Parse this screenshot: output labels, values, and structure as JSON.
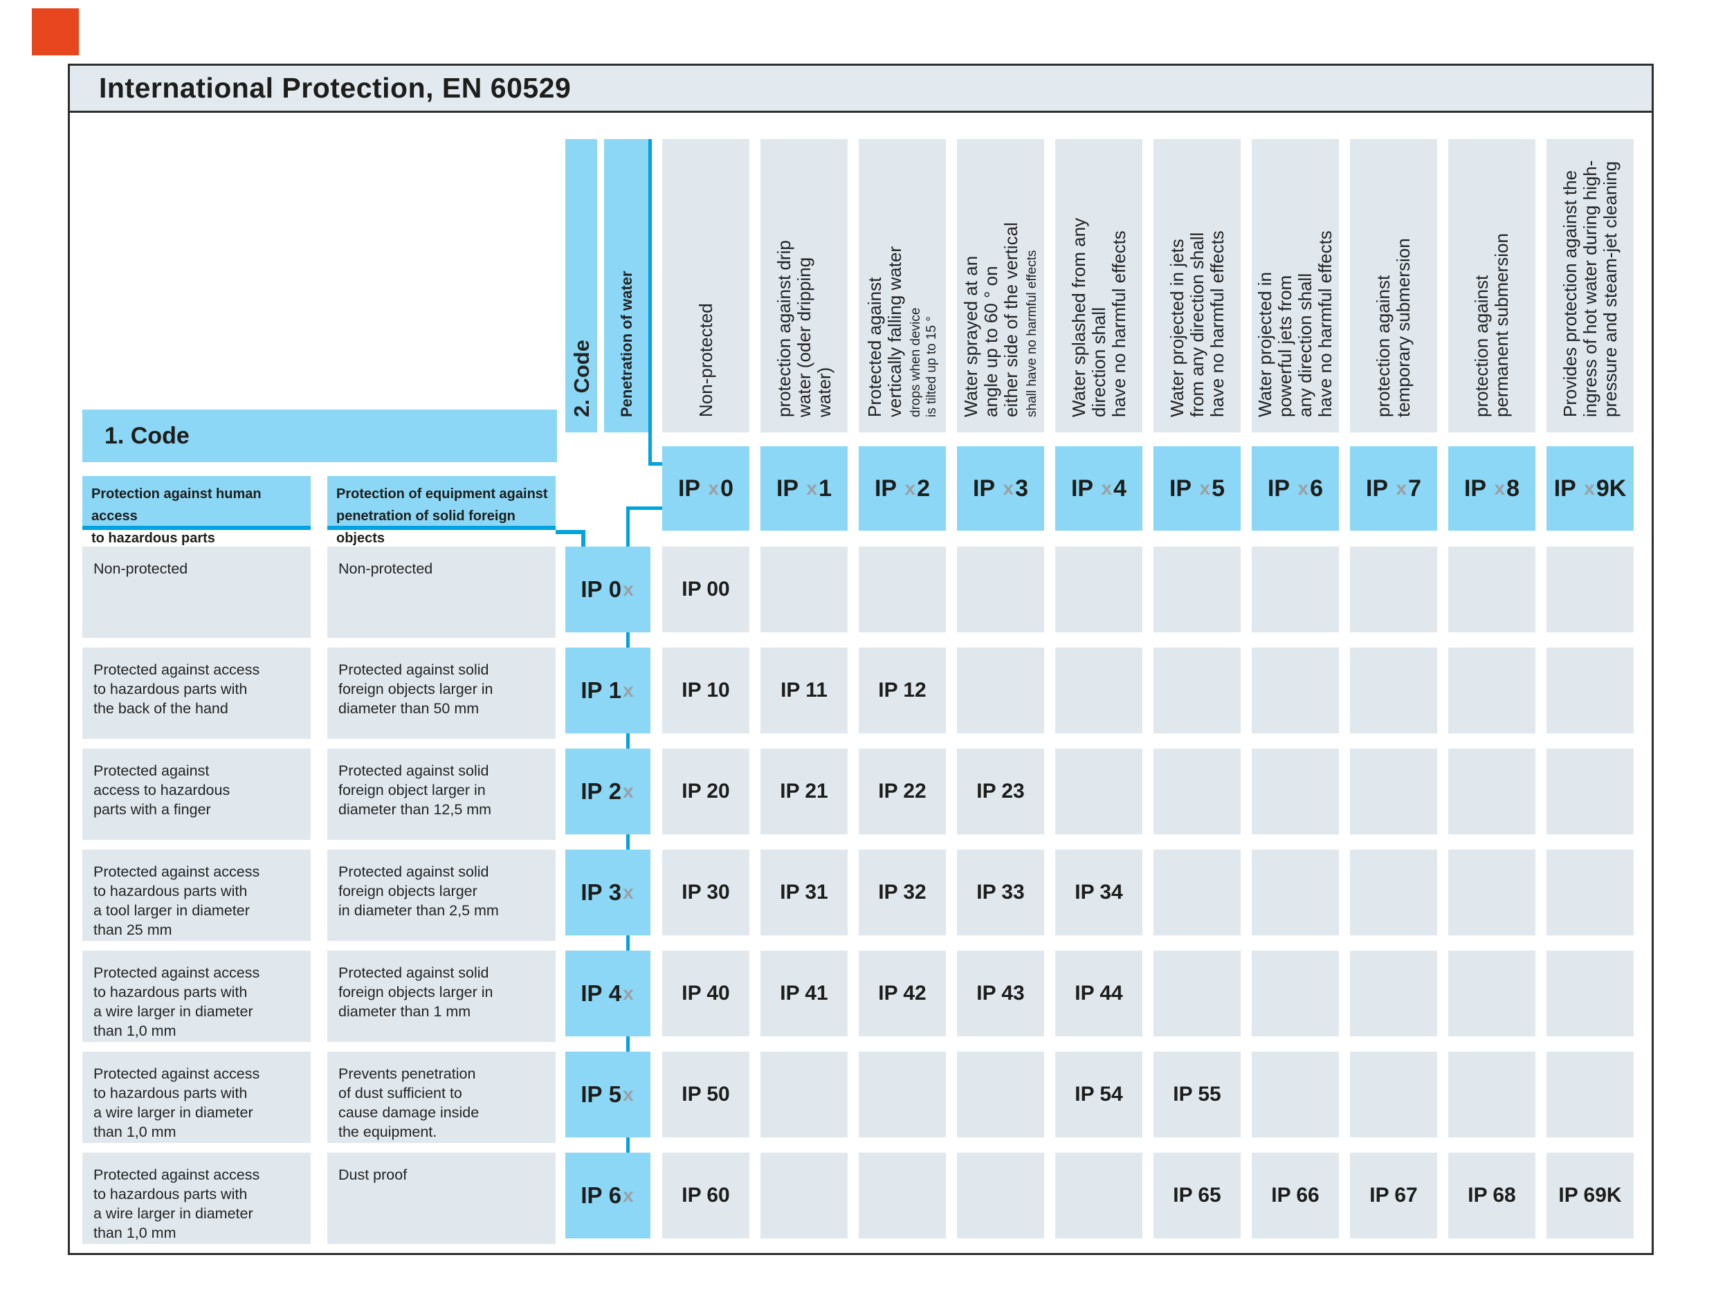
{
  "logo": {
    "name": "red-square-logo",
    "color": "#e8461f"
  },
  "title": "International Protection, EN 60529",
  "header": {
    "code2_label": "2. Code",
    "penetration_label": "Penetration of water",
    "code1_label": "1. Code",
    "subheader_access": "Protection against human access\nto hazardous parts",
    "subheader_objects": "Protection of equipment against\npenetration of solid foreign objects",
    "ip_prefix": "IP",
    "x_placeholder": "x"
  },
  "water_columns": [
    {
      "code_digit": "0",
      "label": "Non-protected",
      "note": ""
    },
    {
      "code_digit": "1",
      "label": "protection against drip\nwater (oder dripping\nwater)",
      "note": ""
    },
    {
      "code_digit": "2",
      "label": "Protected against\nvertically falling water",
      "note": "drops when device\nis tilted up to 15 °"
    },
    {
      "code_digit": "3",
      "label": "Water  sprayed at an\nangle up to 60 ° on\neither side of the vertical",
      "note": "shall have no harmful effects"
    },
    {
      "code_digit": "4",
      "label": "Water splashed from any\ndirection shall\nhave no harmful effects",
      "note": ""
    },
    {
      "code_digit": "5",
      "label": "Water projected in jets\nfrom any direction shall\nhave no harmful effects",
      "note": ""
    },
    {
      "code_digit": "6",
      "label": "Water projected in\npowerful jets from\nany direction shall\nhave no harmful effects",
      "note": ""
    },
    {
      "code_digit": "7",
      "label": "protection against\ntemporary submersion",
      "note": ""
    },
    {
      "code_digit": "8",
      "label": "protection against\npermanent submersion",
      "note": ""
    },
    {
      "code_digit": "9K",
      "label": "Provides protection against the\ningress of hot water during high-\npressure and steam-jet cleaning",
      "note": ""
    }
  ],
  "rows": [
    {
      "code_digit": "0",
      "access": "Non-protected",
      "objects": "Non-protected",
      "values": [
        "IP 00",
        "",
        "",
        "",
        "",
        "",
        "",
        "",
        "",
        ""
      ]
    },
    {
      "code_digit": "1",
      "access": "Protected against access\nto hazardous parts with\nthe back of the hand",
      "objects": "Protected against solid\nforeign objects larger in\ndiameter than 50 mm",
      "values": [
        "IP 10",
        "IP 11",
        "IP 12",
        "",
        "",
        "",
        "",
        "",
        "",
        ""
      ]
    },
    {
      "code_digit": "2",
      "access": "Protected against\naccess to hazardous\nparts with a finger",
      "objects": "Protected against solid\nforeign object larger in\ndiameter than 12,5 mm",
      "values": [
        "IP 20",
        "IP 21",
        "IP 22",
        "IP 23",
        "",
        "",
        "",
        "",
        "",
        ""
      ]
    },
    {
      "code_digit": "3",
      "access": "Protected against access\nto hazardous parts with\na tool larger in diameter\nthan 25 mm",
      "objects": "Protected against solid\nforeign objects larger\nin diameter than 2,5 mm",
      "values": [
        "IP 30",
        "IP 31",
        "IP 32",
        "IP 33",
        "IP 34",
        "",
        "",
        "",
        "",
        ""
      ]
    },
    {
      "code_digit": "4",
      "access": "Protected against access\nto hazardous parts with\na wire larger in diameter\nthan 1,0 mm",
      "objects": "Protected against solid\nforeign objects larger in\ndiameter than 1 mm",
      "values": [
        "IP 40",
        "IP 41",
        "IP 42",
        "IP 43",
        "IP 44",
        "",
        "",
        "",
        "",
        ""
      ]
    },
    {
      "code_digit": "5",
      "access": "Protected against access\nto hazardous parts with\na wire larger in diameter\nthan 1,0 mm",
      "objects": "Prevents penetration\nof dust sufficient to\ncause damage inside\nthe equipment.",
      "values": [
        "IP 50",
        "",
        "",
        "",
        "IP 54",
        "IP 55",
        "",
        "",
        "",
        ""
      ]
    },
    {
      "code_digit": "6",
      "access": "Protected against access\nto hazardous parts with\na wire larger in diameter\nthan 1,0 mm",
      "objects": "Dust proof",
      "values": [
        "IP 60",
        "",
        "",
        "",
        "",
        "IP 65",
        "IP 66",
        "IP 67",
        "IP 68",
        "IP 69K"
      ]
    }
  ],
  "colors": {
    "cell_blue": "#8bd7f5",
    "line_blue": "#00a3e0",
    "cell_gray": "#e0e8ee",
    "titlebar_gray": "#e3eaef",
    "frame_border": "#2e2e2e",
    "text_black": "#1d1d1b",
    "x_gray": "#9aa0a4"
  }
}
